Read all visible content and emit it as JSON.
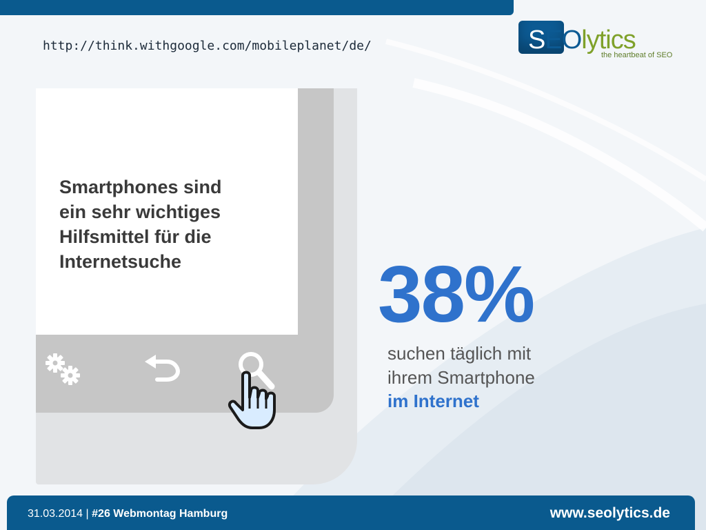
{
  "source_url": "http://think.withgoogle.com/mobileplanet/de/",
  "logo": {
    "letter_s": "S",
    "letters_eo": "EO",
    "letters_lytics": "lytics",
    "tagline": "the heartbeat of SEO"
  },
  "phone": {
    "headline_lines": [
      "Smartphones sind",
      "ein sehr wichtiges",
      "Hilfsmittel für die",
      "Internetsuche"
    ],
    "icons": [
      "settings-gears-icon",
      "back-arrow-icon",
      "search-magnifier-icon",
      "pointing-hand-icon"
    ]
  },
  "stat": {
    "value": "38%",
    "line1": "suchen täglich mit",
    "line2": "ihrem Smartphone",
    "line3": "im Internet"
  },
  "footer": {
    "date": "31.03.2014",
    "separator": "|",
    "event": "#26 Webmontag Hamburg",
    "website": "www.seolytics.de"
  },
  "colors": {
    "brand_blue": "#0a5a8e",
    "stat_blue": "#2f72cc",
    "logo_green": "#7fa12a"
  }
}
